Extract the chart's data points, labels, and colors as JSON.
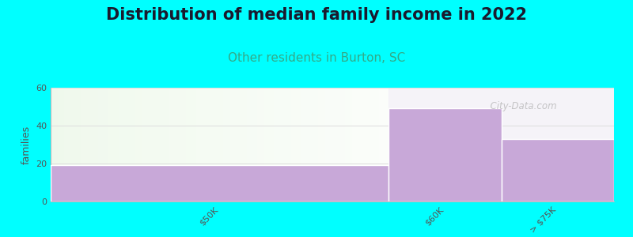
{
  "title": "Distribution of median family income in 2022",
  "subtitle": "Other residents in Burton, SC",
  "categories": [
    "$50K",
    "$60K",
    "> $75K"
  ],
  "values": [
    19,
    49,
    33
  ],
  "bar_color": "#c8a8d8",
  "background_color": "#00ffff",
  "plot_bg_left_color": "#edf7e8",
  "plot_bg_right_color": "#f0f0f5",
  "ylabel": "families",
  "ylim": [
    0,
    60
  ],
  "yticks": [
    0,
    20,
    40,
    60
  ],
  "title_fontsize": 15,
  "subtitle_fontsize": 11,
  "subtitle_color": "#33aa88",
  "watermark": "  City-Data.com",
  "tick_fontsize": 8,
  "ylabel_fontsize": 9
}
